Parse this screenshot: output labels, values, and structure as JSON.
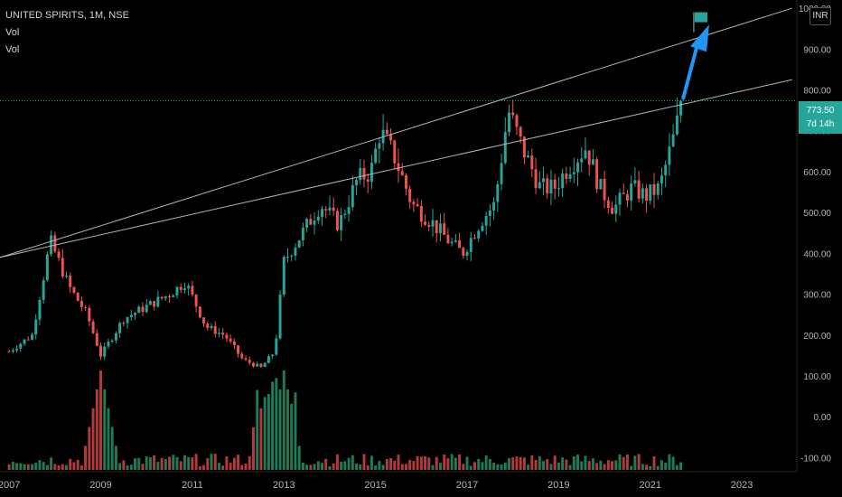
{
  "header": {
    "symbol": "UNITED SPIRITS, 1M, NSE",
    "vol1": "Vol",
    "vol2": "Vol"
  },
  "currency_button": "INR",
  "last_price": {
    "value": "773.50",
    "countdown": "7d 14h",
    "color": "#26a69a"
  },
  "colors": {
    "up": "#26a69a",
    "down": "#ef5350",
    "volume_up": "#1f7a57",
    "volume_down": "#b33a3a",
    "trendline": "#b2b5be",
    "arrow": "#2196f3",
    "flag": "#26a69a"
  },
  "chart_data": {
    "type": "candlestick",
    "ylim": [
      -130,
      1020
    ],
    "y_ticks": [
      "1000.00",
      "900.00",
      "800.00",
      "700.00",
      "600.00",
      "500.00",
      "400.00",
      "300.00",
      "200.00",
      "100.00",
      "0.00",
      "-100.00"
    ],
    "y_tick_values": [
      1000,
      900,
      800,
      700,
      600,
      500,
      400,
      300,
      200,
      100,
      0,
      -100
    ],
    "x_ticks": [
      "2007",
      "2009",
      "2011",
      "2013",
      "2015",
      "2017",
      "2019",
      "2021",
      "2023"
    ],
    "x_tick_years": [
      2007,
      2009,
      2011,
      2013,
      2015,
      2017,
      2019,
      2021,
      2023
    ],
    "x_range_years": [
      2006.8,
      2024.2
    ],
    "series_name": "UNITED SPIRITS",
    "monthly_close_anchors": [
      [
        2007.0,
        160
      ],
      [
        2007.5,
        200
      ],
      [
        2007.9,
        430
      ],
      [
        2008.3,
        320
      ],
      [
        2008.7,
        250
      ],
      [
        2009.0,
        150
      ],
      [
        2009.5,
        240
      ],
      [
        2010.0,
        270
      ],
      [
        2010.5,
        300
      ],
      [
        2010.85,
        330
      ],
      [
        2011.3,
        220
      ],
      [
        2011.7,
        200
      ],
      [
        2012.1,
        140
      ],
      [
        2012.5,
        120
      ],
      [
        2012.8,
        160
      ],
      [
        2013.0,
        380
      ],
      [
        2013.4,
        450
      ],
      [
        2013.8,
        520
      ],
      [
        2014.2,
        470
      ],
      [
        2014.6,
        580
      ],
      [
        2014.9,
        600
      ],
      [
        2015.1,
        700
      ],
      [
        2015.4,
        640
      ],
      [
        2015.8,
        520
      ],
      [
        2016.2,
        480
      ],
      [
        2016.6,
        430
      ],
      [
        2016.9,
        400
      ],
      [
        2017.3,
        480
      ],
      [
        2017.6,
        520
      ],
      [
        2017.9,
        750
      ],
      [
        2018.2,
        660
      ],
      [
        2018.6,
        560
      ],
      [
        2018.9,
        560
      ],
      [
        2019.2,
        610
      ],
      [
        2019.6,
        660
      ],
      [
        2019.9,
        560
      ],
      [
        2020.2,
        510
      ],
      [
        2020.6,
        560
      ],
      [
        2020.9,
        540
      ],
      [
        2021.2,
        560
      ],
      [
        2021.5,
        680
      ],
      [
        2021.7,
        773.5
      ]
    ],
    "trendlines": [
      {
        "from": [
          2006.8,
          390
        ],
        "to": [
          2024.1,
          1000
        ]
      },
      {
        "from": [
          2006.8,
          390
        ],
        "to": [
          2024.1,
          825
        ]
      }
    ],
    "horizontal_line": 773.5,
    "volume_spikes": [
      2009.0,
      2013.0,
      2012.8
    ]
  }
}
